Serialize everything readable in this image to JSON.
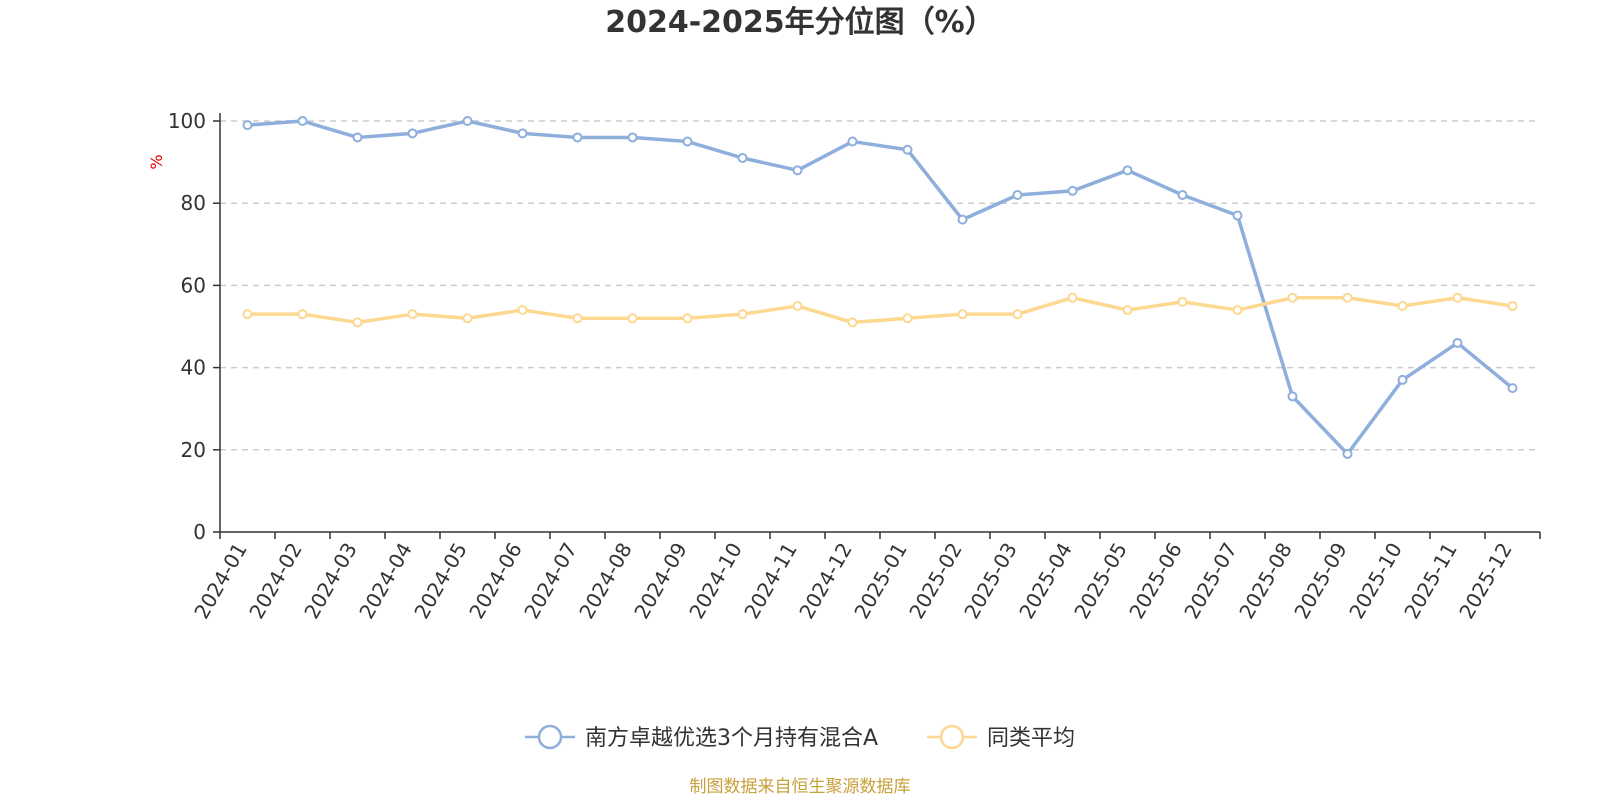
{
  "chart_data": {
    "type": "line",
    "title": "2024-2025年分位图（%）",
    "ylabel": "%",
    "ylim": [
      0,
      100
    ],
    "yticks": [
      0,
      20,
      40,
      60,
      80,
      100
    ],
    "grid": true,
    "legend_position": "bottom",
    "categories": [
      "2024-01",
      "2024-02",
      "2024-03",
      "2024-04",
      "2024-05",
      "2024-06",
      "2024-07",
      "2024-08",
      "2024-09",
      "2024-10",
      "2024-11",
      "2024-12",
      "2025-01",
      "2025-02",
      "2025-03",
      "2025-04",
      "2025-05",
      "2025-06",
      "2025-07",
      "2025-08",
      "2025-09",
      "2025-10",
      "2025-11",
      "2025-12"
    ],
    "series": [
      {
        "name": "南方卓越优选3个月持有混合A",
        "color": "#8eaedb",
        "values": [
          99,
          100,
          96,
          97,
          100,
          97,
          96,
          96,
          95,
          91,
          88,
          95,
          93,
          76,
          82,
          83,
          88,
          82,
          77,
          33,
          19,
          37,
          46,
          35
        ]
      },
      {
        "name": "同类平均",
        "color": "#fcd891",
        "values": [
          53,
          53,
          51,
          53,
          52,
          54,
          52,
          52,
          52,
          53,
          55,
          51,
          52,
          53,
          53,
          57,
          54,
          56,
          54,
          57,
          57,
          55,
          57,
          55
        ]
      }
    ]
  },
  "source_text": "制图数据来自恒生聚源数据库"
}
